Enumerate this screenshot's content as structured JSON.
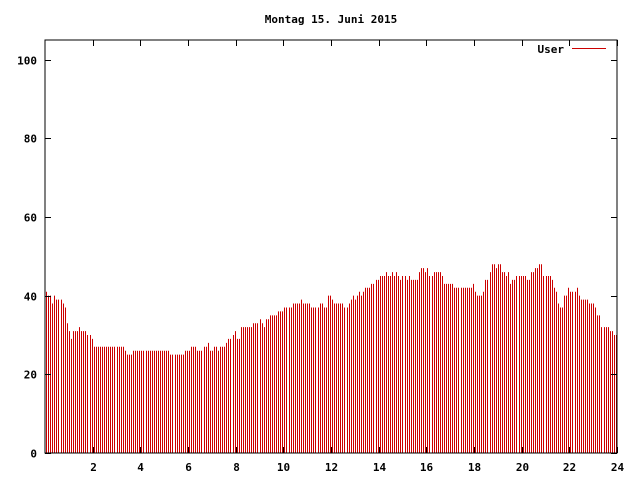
{
  "chart_data": {
    "type": "bar",
    "title": "Montag 15. Juni 2015",
    "xlabel": "",
    "ylabel": "",
    "xlim": [
      0,
      24
    ],
    "ylim": [
      0,
      105
    ],
    "x_ticks": [
      2,
      4,
      6,
      8,
      10,
      12,
      14,
      16,
      18,
      20,
      22,
      24
    ],
    "y_ticks": [
      0,
      20,
      40,
      60,
      80,
      100
    ],
    "grid": false,
    "legend_position": "top-right",
    "series": [
      {
        "name": "User",
        "color": "#cc0000",
        "x_step_hours": 0.0833,
        "values": [
          41,
          40,
          40,
          38,
          40,
          39,
          39,
          39,
          38,
          37,
          33,
          31,
          29,
          31,
          31,
          31,
          32,
          31,
          31,
          31,
          30,
          30,
          29,
          27,
          27,
          27,
          27,
          27,
          27,
          27,
          27,
          27,
          27,
          27,
          27,
          27,
          27,
          27,
          26,
          25,
          25,
          25,
          26,
          26,
          26,
          26,
          26,
          26,
          26,
          26,
          26,
          26,
          26,
          26,
          26,
          26,
          26,
          26,
          26,
          26,
          25,
          25,
          25,
          25,
          25,
          25,
          25,
          26,
          26,
          26,
          27,
          27,
          27,
          26,
          26,
          26,
          27,
          27,
          28,
          26,
          26,
          27,
          27,
          26,
          27,
          27,
          27,
          28,
          29,
          29,
          30,
          31,
          29,
          29,
          32,
          32,
          32,
          32,
          32,
          32,
          33,
          33,
          33,
          34,
          33,
          32,
          34,
          34,
          35,
          35,
          35,
          35,
          36,
          36,
          36,
          37,
          37,
          37,
          37,
          38,
          38,
          38,
          38,
          39,
          38,
          38,
          38,
          38,
          37,
          37,
          37,
          37,
          38,
          38,
          37,
          37,
          40,
          40,
          39,
          38,
          38,
          38,
          38,
          38,
          37,
          37,
          38,
          39,
          40,
          39,
          40,
          41,
          40,
          41,
          42,
          42,
          42,
          43,
          43,
          44,
          44,
          45,
          45,
          45,
          46,
          45,
          45,
          46,
          45,
          46,
          45,
          44,
          45,
          45,
          44,
          45,
          44,
          44,
          44,
          44,
          46,
          47,
          47,
          46,
          47,
          45,
          45,
          46,
          46,
          46,
          46,
          45,
          43,
          43,
          43,
          43,
          43,
          42,
          42,
          42,
          42,
          42,
          42,
          42,
          42,
          42,
          43,
          41,
          40,
          40,
          40,
          41,
          44,
          44,
          46,
          48,
          48,
          47,
          48,
          48,
          46,
          46,
          45,
          46,
          43,
          44,
          44,
          45,
          45,
          45,
          45,
          45,
          44,
          44,
          46,
          46,
          47,
          47,
          48,
          48,
          45,
          45,
          45,
          45,
          44,
          42,
          41,
          38,
          37,
          37,
          40,
          40,
          42,
          41,
          41,
          41,
          42,
          40,
          39,
          39,
          39,
          39,
          38,
          38,
          38,
          37,
          35,
          35,
          32,
          32,
          32,
          32,
          31,
          31,
          30,
          30
        ]
      }
    ]
  }
}
